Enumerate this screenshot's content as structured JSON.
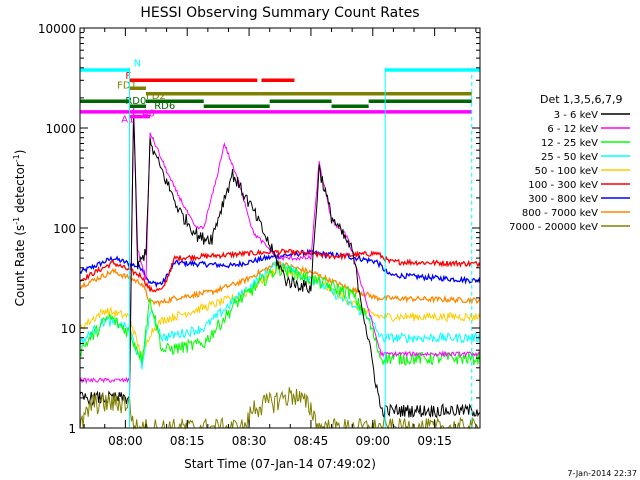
{
  "chart_data": {
    "type": "line",
    "title": "HESSI Observing Summary Count Rates",
    "xlabel": "Start Time (07-Jan-14 07:49:02)",
    "ylabel_main": "Count Rate (s",
    "ylabel_sup1": "-1",
    "ylabel_mid": " detector",
    "ylabel_sup2": "-1",
    "ylabel_end": ")",
    "y_scale": "log",
    "ylim": [
      1,
      10000
    ],
    "xlim_minutes_after_0749": [
      0,
      97
    ],
    "x_tick_labels": [
      "08:00",
      "08:15",
      "08:30",
      "08:45",
      "09:00",
      "09:15"
    ],
    "y_tick_labels": [
      "1",
      "10",
      "100",
      "1000",
      "10000"
    ],
    "legend_title": "Det 1,3,5,6,7,9",
    "legend_position": "right",
    "footer_timestamp": "7-Jan-2014 22:37",
    "series": [
      {
        "name": "3 - 6 keV",
        "color": "#000000"
      },
      {
        "name": "6 - 12 keV",
        "color": "#ff00ff"
      },
      {
        "name": "12 - 25 keV",
        "color": "#00ff00"
      },
      {
        "name": "25 - 50 keV",
        "color": "#00ffff"
      },
      {
        "name": "50 - 100 keV",
        "color": "#ffcc00"
      },
      {
        "name": "100 - 300 keV",
        "color": "#ff0000"
      },
      {
        "name": "300 - 800 keV",
        "color": "#0000ff"
      },
      {
        "name": "800 - 7000 keV",
        "color": "#ff8800"
      },
      {
        "name": "7000 - 20000 keV",
        "color": "#808000"
      }
    ],
    "flag_labels": {
      "N": "N",
      "F": "F",
      "FD1": "FD1",
      "FD2": "FD2",
      "RD0": "RD0",
      "RD6": "RD6",
      "A0": "A0",
      "A1": "A1"
    }
  }
}
